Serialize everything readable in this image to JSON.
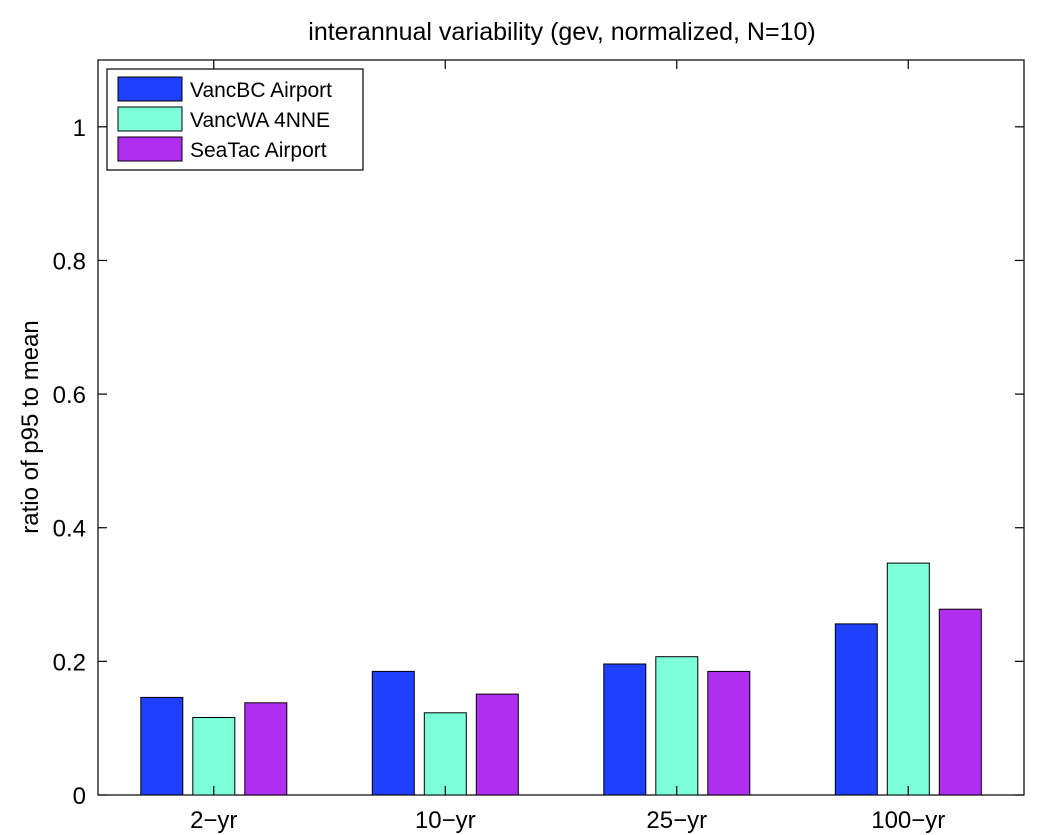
{
  "chart_data": {
    "type": "bar",
    "title": "interannual variability (gev, normalized, N=10)",
    "xlabel": "",
    "ylabel": "ratio of p95 to mean",
    "categories": [
      "2−yr",
      "10−yr",
      "25−yr",
      "100−yr"
    ],
    "ylim": [
      0,
      1.1
    ],
    "yticks": [
      0,
      0.2,
      0.4,
      0.6,
      0.8,
      1
    ],
    "ytick_labels": [
      "0",
      "0.2",
      "0.4",
      "0.6",
      "0.8",
      "1"
    ],
    "grid": false,
    "legend_position": "top-left",
    "series": [
      {
        "name": "VancBC Airport",
        "color": "#2040ff",
        "values": [
          0.146,
          0.185,
          0.196,
          0.256
        ]
      },
      {
        "name": "VancWA 4NNE",
        "color": "#7dffdc",
        "values": [
          0.116,
          0.123,
          0.207,
          0.347
        ]
      },
      {
        "name": "SeaTac Airport",
        "color": "#b02ef0",
        "values": [
          0.138,
          0.151,
          0.185,
          0.278
        ]
      }
    ]
  }
}
